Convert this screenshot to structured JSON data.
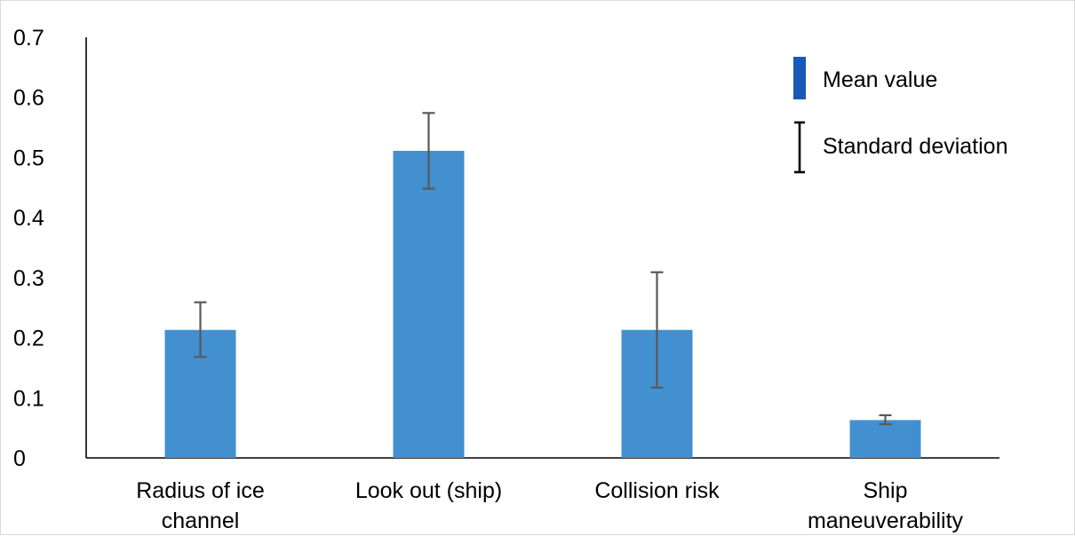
{
  "chart_data": {
    "type": "bar",
    "categories": [
      [
        "Radius of ice",
        "channel"
      ],
      [
        "Look out (ship)"
      ],
      [
        "Collision risk"
      ],
      [
        "Ship",
        "maneuverability"
      ]
    ],
    "series": [
      {
        "values": [
          0.213,
          0.511,
          0.213,
          0.063
        ],
        "error_low": [
          0.168,
          0.448,
          0.117,
          0.056
        ],
        "error_high": [
          0.259,
          0.574,
          0.309,
          0.071
        ]
      }
    ],
    "ylim": [
      0,
      0.7
    ],
    "yticks": [
      "0",
      "0.1",
      "0.2",
      "0.3",
      "0.4",
      "0.5",
      "0.6",
      "0.7"
    ],
    "grid": false,
    "legend": {
      "position": "top-right",
      "items": [
        {
          "label": "Mean value",
          "marker": "bar"
        },
        {
          "label": "Standard deviation",
          "marker": "errorbar"
        }
      ]
    },
    "colors": {
      "bar": "#4390d0",
      "legend_bar": "#1759b6",
      "error_bar": "#595959",
      "legend_error": "#000000",
      "axis": "#000000"
    }
  }
}
